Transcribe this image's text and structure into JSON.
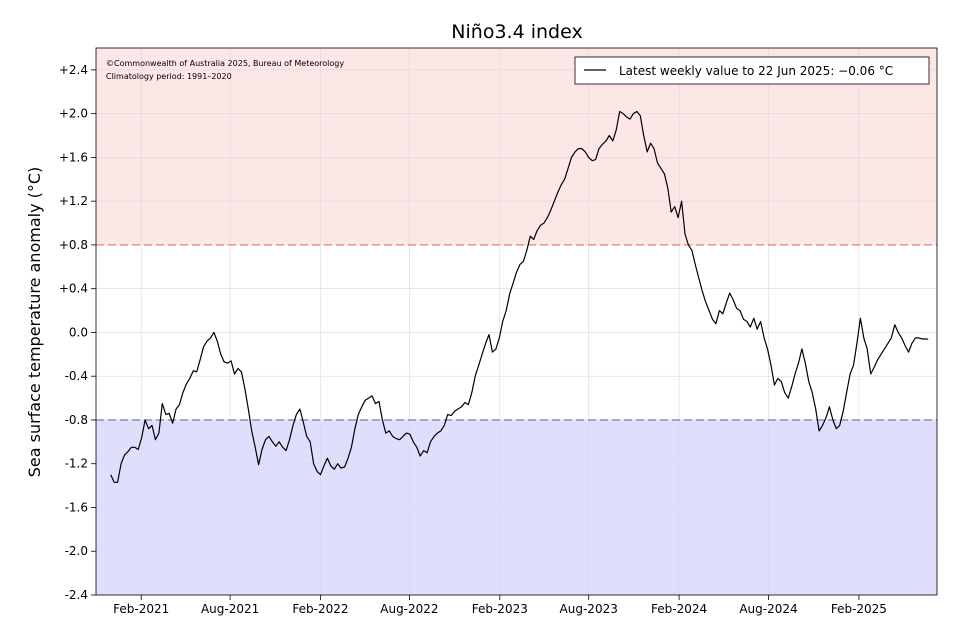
{
  "chart_data": {
    "type": "line",
    "title": "Niño3.4 index",
    "ylabel": "Sea surface temperature anomaly (°C)",
    "xlabel": "",
    "ylim": [
      -2.4,
      2.6
    ],
    "xlim": [
      "2020-11-01",
      "2025-07-10"
    ],
    "grid": true,
    "y_ticks": [
      2.4,
      2.0,
      1.6,
      1.2,
      0.8,
      0.4,
      0.0,
      -0.4,
      -0.8,
      -1.2,
      -1.6,
      -2.0,
      -2.4
    ],
    "y_tick_labels": [
      "+2.4",
      "+2.0",
      "+1.6",
      "+1.2",
      "+0.8",
      "+0.4",
      "0.0",
      "-0.4",
      "-0.8",
      "-1.2",
      "-1.6",
      "-2.0",
      "-2.4"
    ],
    "x_ticks": [
      "2021-02-01",
      "2021-08-01",
      "2022-02-01",
      "2022-08-01",
      "2023-02-01",
      "2023-08-01",
      "2024-02-01",
      "2024-08-01",
      "2025-02-01"
    ],
    "x_tick_labels": [
      "Feb-2021",
      "Aug-2021",
      "Feb-2022",
      "Aug-2022",
      "Feb-2023",
      "Aug-2023",
      "Feb-2024",
      "Aug-2024",
      "Feb-2025"
    ],
    "thresholds": [
      {
        "value": 0.8,
        "color": "#e8726b"
      },
      {
        "value": -0.8,
        "color": "#6f6fa0"
      }
    ],
    "regions": [
      {
        "from": 0.8,
        "to": 2.6,
        "color": "#fde6e6"
      },
      {
        "from": -2.4,
        "to": -0.8,
        "color": "#dfdffd"
      }
    ],
    "annotations": [
      "©Commonwealth of Australia 2025, Bureau of Meteorology",
      "Climatology period: 1991–2020"
    ],
    "legend": {
      "position": "top-right",
      "label": "Latest weekly value to 22 Jun 2025: −0.06 °C"
    },
    "series": [
      {
        "color": "#000000",
        "points": [
          [
            "2020-12-01",
            -1.3
          ],
          [
            "2020-12-08",
            -1.37
          ],
          [
            "2020-12-15",
            -1.37
          ],
          [
            "2020-12-22",
            -1.2
          ],
          [
            "2020-12-29",
            -1.12
          ],
          [
            "2021-01-05",
            -1.09
          ],
          [
            "2021-01-12",
            -1.05
          ],
          [
            "2021-01-19",
            -1.05
          ],
          [
            "2021-01-26",
            -1.07
          ],
          [
            "2021-02-02",
            -0.96
          ],
          [
            "2021-02-09",
            -0.8
          ],
          [
            "2021-02-16",
            -0.88
          ],
          [
            "2021-02-23",
            -0.85
          ],
          [
            "2021-03-02",
            -0.98
          ],
          [
            "2021-03-09",
            -0.92
          ],
          [
            "2021-03-16",
            -0.65
          ],
          [
            "2021-03-23",
            -0.75
          ],
          [
            "2021-03-30",
            -0.74
          ],
          [
            "2021-04-06",
            -0.83
          ],
          [
            "2021-04-13",
            -0.7
          ],
          [
            "2021-04-20",
            -0.66
          ],
          [
            "2021-04-27",
            -0.55
          ],
          [
            "2021-05-04",
            -0.47
          ],
          [
            "2021-05-11",
            -0.42
          ],
          [
            "2021-05-18",
            -0.35
          ],
          [
            "2021-05-25",
            -0.36
          ],
          [
            "2021-06-01",
            -0.25
          ],
          [
            "2021-06-08",
            -0.13
          ],
          [
            "2021-06-15",
            -0.08
          ],
          [
            "2021-06-22",
            -0.05
          ],
          [
            "2021-06-29",
            0.0
          ],
          [
            "2021-07-06",
            -0.08
          ],
          [
            "2021-07-13",
            -0.2
          ],
          [
            "2021-07-20",
            -0.27
          ],
          [
            "2021-07-27",
            -0.28
          ],
          [
            "2021-08-03",
            -0.26
          ],
          [
            "2021-08-10",
            -0.38
          ],
          [
            "2021-08-17",
            -0.33
          ],
          [
            "2021-08-24",
            -0.36
          ],
          [
            "2021-08-31",
            -0.51
          ],
          [
            "2021-09-07",
            -0.7
          ],
          [
            "2021-09-14",
            -0.9
          ],
          [
            "2021-09-21",
            -1.05
          ],
          [
            "2021-09-28",
            -1.21
          ],
          [
            "2021-10-05",
            -1.07
          ],
          [
            "2021-10-12",
            -0.98
          ],
          [
            "2021-10-19",
            -0.95
          ],
          [
            "2021-10-26",
            -1.0
          ],
          [
            "2021-11-02",
            -1.04
          ],
          [
            "2021-11-09",
            -1.0
          ],
          [
            "2021-11-16",
            -1.05
          ],
          [
            "2021-11-23",
            -1.08
          ],
          [
            "2021-11-30",
            -0.98
          ],
          [
            "2021-12-07",
            -0.85
          ],
          [
            "2021-12-14",
            -0.75
          ],
          [
            "2021-12-21",
            -0.7
          ],
          [
            "2021-12-28",
            -0.82
          ],
          [
            "2022-01-04",
            -0.95
          ],
          [
            "2022-01-11",
            -1.0
          ],
          [
            "2022-01-18",
            -1.2
          ],
          [
            "2022-01-25",
            -1.27
          ],
          [
            "2022-02-01",
            -1.3
          ],
          [
            "2022-02-08",
            -1.22
          ],
          [
            "2022-02-15",
            -1.15
          ],
          [
            "2022-02-22",
            -1.22
          ],
          [
            "2022-03-01",
            -1.25
          ],
          [
            "2022-03-08",
            -1.2
          ],
          [
            "2022-03-15",
            -1.24
          ],
          [
            "2022-03-22",
            -1.23
          ],
          [
            "2022-03-29",
            -1.15
          ],
          [
            "2022-04-05",
            -1.05
          ],
          [
            "2022-04-12",
            -0.88
          ],
          [
            "2022-04-19",
            -0.75
          ],
          [
            "2022-04-26",
            -0.68
          ],
          [
            "2022-05-03",
            -0.62
          ],
          [
            "2022-05-10",
            -0.6
          ],
          [
            "2022-05-17",
            -0.58
          ],
          [
            "2022-05-24",
            -0.65
          ],
          [
            "2022-05-31",
            -0.63
          ],
          [
            "2022-06-07",
            -0.8
          ],
          [
            "2022-06-14",
            -0.92
          ],
          [
            "2022-06-21",
            -0.9
          ],
          [
            "2022-06-28",
            -0.95
          ],
          [
            "2022-07-05",
            -0.97
          ],
          [
            "2022-07-12",
            -0.98
          ],
          [
            "2022-07-19",
            -0.95
          ],
          [
            "2022-07-26",
            -0.92
          ],
          [
            "2022-08-02",
            -0.93
          ],
          [
            "2022-08-09",
            -1.0
          ],
          [
            "2022-08-16",
            -1.05
          ],
          [
            "2022-08-23",
            -1.13
          ],
          [
            "2022-08-30",
            -1.08
          ],
          [
            "2022-09-06",
            -1.1
          ],
          [
            "2022-09-13",
            -1.0
          ],
          [
            "2022-09-20",
            -0.95
          ],
          [
            "2022-09-27",
            -0.92
          ],
          [
            "2022-10-04",
            -0.9
          ],
          [
            "2022-10-11",
            -0.85
          ],
          [
            "2022-10-18",
            -0.75
          ],
          [
            "2022-10-25",
            -0.76
          ],
          [
            "2022-11-01",
            -0.72
          ],
          [
            "2022-11-08",
            -0.7
          ],
          [
            "2022-11-15",
            -0.68
          ],
          [
            "2022-11-22",
            -0.64
          ],
          [
            "2022-11-29",
            -0.66
          ],
          [
            "2022-12-06",
            -0.55
          ],
          [
            "2022-12-13",
            -0.4
          ],
          [
            "2022-12-20",
            -0.3
          ],
          [
            "2022-12-27",
            -0.2
          ],
          [
            "2023-01-03",
            -0.1
          ],
          [
            "2023-01-10",
            -0.02
          ],
          [
            "2023-01-17",
            -0.18
          ],
          [
            "2023-01-24",
            -0.15
          ],
          [
            "2023-01-31",
            -0.05
          ],
          [
            "2023-02-07",
            0.1
          ],
          [
            "2023-02-14",
            0.2
          ],
          [
            "2023-02-21",
            0.35
          ],
          [
            "2023-02-28",
            0.45
          ],
          [
            "2023-03-07",
            0.55
          ],
          [
            "2023-03-14",
            0.62
          ],
          [
            "2023-03-21",
            0.65
          ],
          [
            "2023-03-28",
            0.75
          ],
          [
            "2023-04-04",
            0.88
          ],
          [
            "2023-04-11",
            0.85
          ],
          [
            "2023-04-18",
            0.93
          ],
          [
            "2023-04-25",
            0.98
          ],
          [
            "2023-05-02",
            1.0
          ],
          [
            "2023-05-09",
            1.05
          ],
          [
            "2023-05-16",
            1.12
          ],
          [
            "2023-05-23",
            1.2
          ],
          [
            "2023-05-30",
            1.28
          ],
          [
            "2023-06-06",
            1.35
          ],
          [
            "2023-06-13",
            1.4
          ],
          [
            "2023-06-20",
            1.5
          ],
          [
            "2023-06-27",
            1.6
          ],
          [
            "2023-07-04",
            1.65
          ],
          [
            "2023-07-11",
            1.68
          ],
          [
            "2023-07-18",
            1.68
          ],
          [
            "2023-07-25",
            1.65
          ],
          [
            "2023-08-01",
            1.6
          ],
          [
            "2023-08-08",
            1.57
          ],
          [
            "2023-08-15",
            1.58
          ],
          [
            "2023-08-22",
            1.68
          ],
          [
            "2023-08-29",
            1.72
          ],
          [
            "2023-09-05",
            1.75
          ],
          [
            "2023-09-12",
            1.8
          ],
          [
            "2023-09-19",
            1.75
          ],
          [
            "2023-09-26",
            1.85
          ],
          [
            "2023-10-03",
            2.02
          ],
          [
            "2023-10-10",
            2.0
          ],
          [
            "2023-10-17",
            1.97
          ],
          [
            "2023-10-24",
            1.95
          ],
          [
            "2023-10-31",
            2.0
          ],
          [
            "2023-11-07",
            2.02
          ],
          [
            "2023-11-14",
            1.98
          ],
          [
            "2023-11-21",
            1.8
          ],
          [
            "2023-11-28",
            1.65
          ],
          [
            "2023-12-05",
            1.73
          ],
          [
            "2023-12-12",
            1.68
          ],
          [
            "2023-12-19",
            1.55
          ],
          [
            "2023-12-26",
            1.5
          ],
          [
            "2024-01-02",
            1.45
          ],
          [
            "2024-01-09",
            1.32
          ],
          [
            "2024-01-16",
            1.1
          ],
          [
            "2024-01-23",
            1.15
          ],
          [
            "2024-01-30",
            1.05
          ],
          [
            "2024-02-06",
            1.2
          ],
          [
            "2024-02-13",
            0.9
          ],
          [
            "2024-02-20",
            0.8
          ],
          [
            "2024-02-27",
            0.75
          ],
          [
            "2024-03-05",
            0.62
          ],
          [
            "2024-03-12",
            0.5
          ],
          [
            "2024-03-19",
            0.38
          ],
          [
            "2024-03-26",
            0.28
          ],
          [
            "2024-04-02",
            0.2
          ],
          [
            "2024-04-09",
            0.12
          ],
          [
            "2024-04-16",
            0.08
          ],
          [
            "2024-04-23",
            0.2
          ],
          [
            "2024-04-30",
            0.17
          ],
          [
            "2024-05-07",
            0.27
          ],
          [
            "2024-05-14",
            0.36
          ],
          [
            "2024-05-21",
            0.3
          ],
          [
            "2024-05-28",
            0.22
          ],
          [
            "2024-06-04",
            0.2
          ],
          [
            "2024-06-11",
            0.12
          ],
          [
            "2024-06-18",
            0.1
          ],
          [
            "2024-06-25",
            0.05
          ],
          [
            "2024-07-02",
            0.13
          ],
          [
            "2024-07-09",
            0.03
          ],
          [
            "2024-07-16",
            0.1
          ],
          [
            "2024-07-23",
            -0.05
          ],
          [
            "2024-07-30",
            -0.15
          ],
          [
            "2024-08-06",
            -0.3
          ],
          [
            "2024-08-13",
            -0.48
          ],
          [
            "2024-08-20",
            -0.42
          ],
          [
            "2024-08-27",
            -0.45
          ],
          [
            "2024-09-03",
            -0.55
          ],
          [
            "2024-09-10",
            -0.6
          ],
          [
            "2024-09-17",
            -0.5
          ],
          [
            "2024-09-24",
            -0.38
          ],
          [
            "2024-10-01",
            -0.28
          ],
          [
            "2024-10-08",
            -0.15
          ],
          [
            "2024-10-15",
            -0.28
          ],
          [
            "2024-10-22",
            -0.45
          ],
          [
            "2024-10-29",
            -0.55
          ],
          [
            "2024-11-05",
            -0.7
          ],
          [
            "2024-11-12",
            -0.9
          ],
          [
            "2024-11-19",
            -0.85
          ],
          [
            "2024-11-26",
            -0.78
          ],
          [
            "2024-12-03",
            -0.68
          ],
          [
            "2024-12-10",
            -0.8
          ],
          [
            "2024-12-17",
            -0.88
          ],
          [
            "2024-12-24",
            -0.85
          ],
          [
            "2024-12-31",
            -0.72
          ],
          [
            "2025-01-07",
            -0.55
          ],
          [
            "2025-01-14",
            -0.38
          ],
          [
            "2025-01-21",
            -0.3
          ],
          [
            "2025-01-28",
            -0.1
          ],
          [
            "2025-02-04",
            0.13
          ],
          [
            "2025-02-11",
            -0.05
          ],
          [
            "2025-02-18",
            -0.15
          ],
          [
            "2025-02-25",
            -0.38
          ],
          [
            "2025-03-04",
            -0.32
          ],
          [
            "2025-03-11",
            -0.25
          ],
          [
            "2025-03-18",
            -0.2
          ],
          [
            "2025-03-25",
            -0.15
          ],
          [
            "2025-04-01",
            -0.1
          ],
          [
            "2025-04-08",
            -0.05
          ],
          [
            "2025-04-15",
            0.07
          ],
          [
            "2025-04-22",
            0.0
          ],
          [
            "2025-04-29",
            -0.05
          ],
          [
            "2025-05-06",
            -0.12
          ],
          [
            "2025-05-13",
            -0.18
          ],
          [
            "2025-05-20",
            -0.1
          ],
          [
            "2025-05-27",
            -0.05
          ],
          [
            "2025-06-03",
            -0.05
          ],
          [
            "2025-06-10",
            -0.06
          ],
          [
            "2025-06-17",
            -0.06
          ],
          [
            "2025-06-22",
            -0.06
          ]
        ]
      }
    ]
  }
}
